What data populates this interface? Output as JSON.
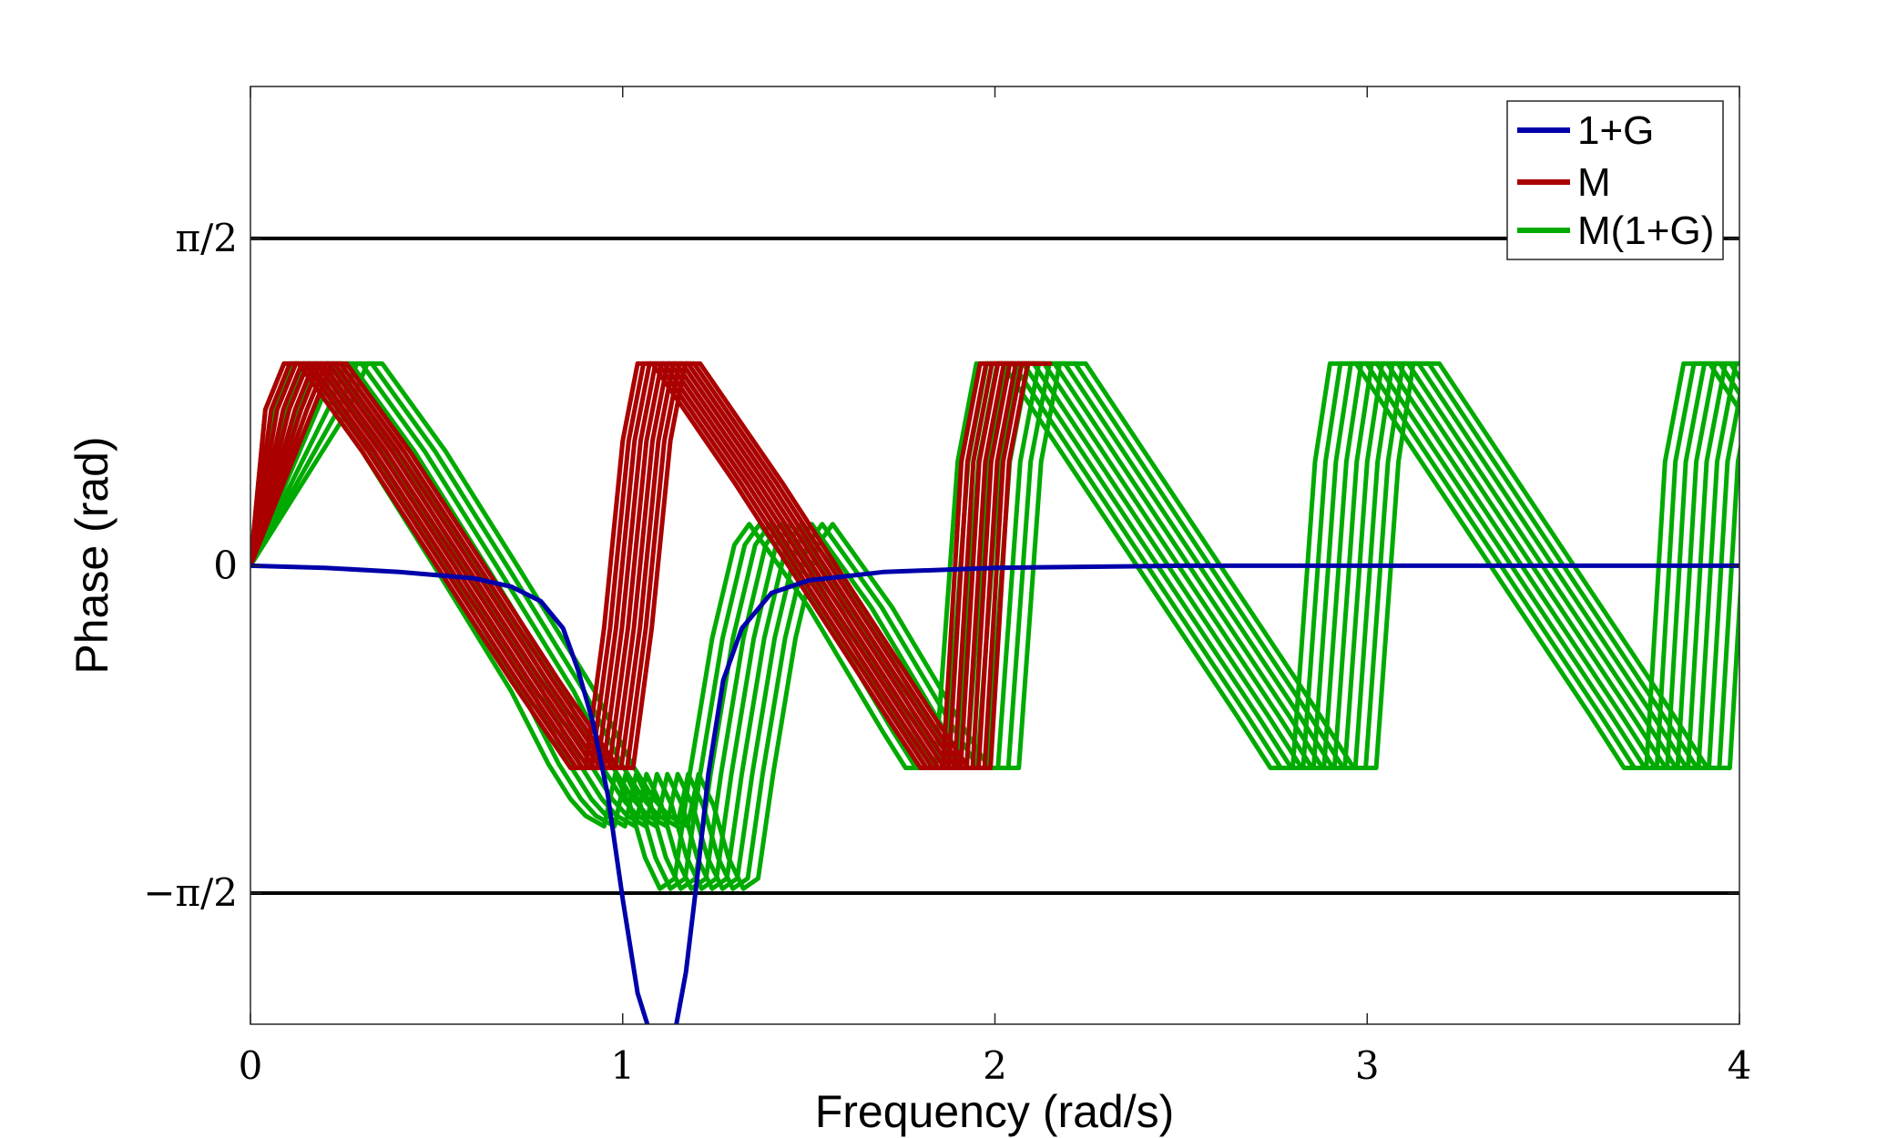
{
  "chart_data": {
    "type": "line",
    "xlabel": "Frequency (rad/s)",
    "ylabel": "Phase (rad)",
    "xlim": [
      0,
      4
    ],
    "ylim": [
      -2.2,
      2.3
    ],
    "xticks": [
      {
        "value": 0,
        "label": "0"
      },
      {
        "value": 1,
        "label": "1"
      },
      {
        "value": 2,
        "label": "2"
      },
      {
        "value": 3,
        "label": "3"
      },
      {
        "value": 4,
        "label": "4"
      }
    ],
    "yticks": [
      {
        "value": 1.5708,
        "label": "π/2"
      },
      {
        "value": 0,
        "label": "0"
      },
      {
        "value": -1.5708,
        "label": "−π/2"
      }
    ],
    "reference_lines": [
      {
        "y": 1.5708,
        "color": "#000000"
      },
      {
        "y": -1.5708,
        "color": "#000000"
      }
    ],
    "grid": false,
    "legend": {
      "position": "top-right",
      "entries": [
        {
          "label": "1+G",
          "color": "#0000aa"
        },
        {
          "label": "M",
          "color": "#aa0000"
        },
        {
          "label": "M(1+G)",
          "color": "#00aa00"
        }
      ]
    },
    "series": [
      {
        "name": "1+G",
        "color": "#0000aa",
        "points": [
          [
            0,
            0
          ],
          [
            0.2,
            -0.01
          ],
          [
            0.4,
            -0.03
          ],
          [
            0.6,
            -0.06
          ],
          [
            0.7,
            -0.1
          ],
          [
            0.78,
            -0.17
          ],
          [
            0.84,
            -0.3
          ],
          [
            0.88,
            -0.5
          ],
          [
            0.92,
            -0.75
          ],
          [
            0.96,
            -1.1
          ],
          [
            1.0,
            -1.6
          ],
          [
            1.04,
            -2.05
          ],
          [
            1.08,
            -2.28
          ],
          [
            1.11,
            -2.32
          ],
          [
            1.14,
            -2.24
          ],
          [
            1.17,
            -1.95
          ],
          [
            1.2,
            -1.5
          ],
          [
            1.23,
            -1.0
          ],
          [
            1.27,
            -0.55
          ],
          [
            1.32,
            -0.3
          ],
          [
            1.4,
            -0.13
          ],
          [
            1.5,
            -0.07
          ],
          [
            1.7,
            -0.03
          ],
          [
            2.0,
            -0.01
          ],
          [
            2.5,
            0
          ],
          [
            3.0,
            0
          ],
          [
            3.5,
            0
          ],
          [
            4.0,
            0
          ]
        ]
      },
      {
        "name": "M",
        "color": "#aa0000",
        "band": 9,
        "points": [
          [
            0,
            0
          ],
          [
            0.04,
            0.75
          ],
          [
            0.09,
            0.97
          ],
          [
            0.13,
            0.97
          ],
          [
            0.3,
            0.55
          ],
          [
            0.5,
            0
          ],
          [
            0.7,
            -0.55
          ],
          [
            0.86,
            -0.97
          ],
          [
            0.9,
            -0.97
          ],
          [
            0.95,
            -0.3
          ],
          [
            1.0,
            0.6
          ],
          [
            1.04,
            0.97
          ],
          [
            1.08,
            0.97
          ],
          [
            1.3,
            0.4
          ],
          [
            1.5,
            -0.15
          ],
          [
            1.7,
            -0.7
          ],
          [
            1.8,
            -0.97
          ],
          [
            1.86,
            -0.97
          ],
          [
            1.91,
            0.5
          ],
          [
            1.96,
            0.97
          ],
          [
            2.02,
            0.97
          ]
        ],
        "band_offset_x": 0.016
      },
      {
        "name": "M(1+G)",
        "color": "#00aa00",
        "band": 9,
        "points": [
          [
            0,
            0
          ],
          [
            0.04,
            0.75
          ],
          [
            0.09,
            0.97
          ],
          [
            0.13,
            0.97
          ],
          [
            0.3,
            0.55
          ],
          [
            0.5,
            -0.02
          ],
          [
            0.7,
            -0.6
          ],
          [
            0.8,
            -0.95
          ],
          [
            0.86,
            -1.12
          ],
          [
            0.9,
            -1.2
          ],
          [
            0.95,
            -1.25
          ],
          [
            0.98,
            -1.0
          ],
          [
            1.02,
            -1.15
          ],
          [
            1.06,
            -1.4
          ],
          [
            1.1,
            -1.55
          ],
          [
            1.14,
            -1.5
          ],
          [
            1.18,
            -1.0
          ],
          [
            1.24,
            -0.35
          ],
          [
            1.3,
            0.1
          ],
          [
            1.34,
            0.2
          ],
          [
            1.4,
            0.05
          ],
          [
            1.5,
            -0.2
          ],
          [
            1.6,
            -0.5
          ],
          [
            1.7,
            -0.8
          ],
          [
            1.76,
            -0.97
          ],
          [
            1.84,
            -0.97
          ],
          [
            1.9,
            0.5
          ],
          [
            1.95,
            0.97
          ],
          [
            2.02,
            0.97
          ],
          [
            2.4,
            -0.05
          ],
          [
            2.65,
            -0.72
          ],
          [
            2.74,
            -0.97
          ],
          [
            2.8,
            -0.97
          ],
          [
            2.86,
            0.5
          ],
          [
            2.9,
            0.97
          ],
          [
            2.97,
            0.97
          ],
          [
            3.35,
            -0.05
          ],
          [
            3.6,
            -0.72
          ],
          [
            3.69,
            -0.97
          ],
          [
            3.75,
            -0.97
          ],
          [
            3.8,
            0.5
          ],
          [
            3.85,
            0.97
          ],
          [
            3.92,
            0.97
          ],
          [
            4.0,
            0.75
          ]
        ],
        "band_offset_x": 0.028
      }
    ]
  }
}
